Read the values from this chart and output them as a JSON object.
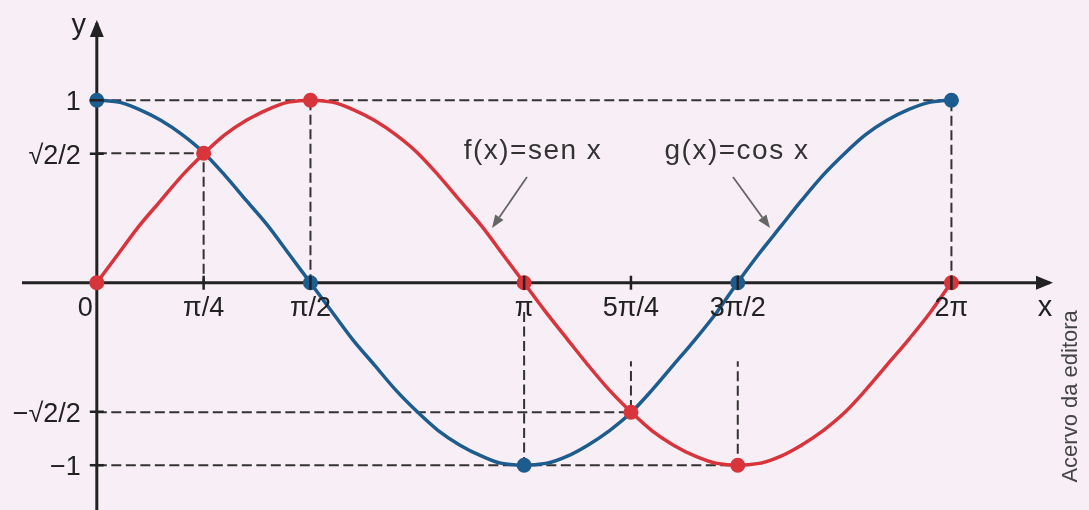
{
  "chart_data": {
    "type": "line",
    "xlabel": "x",
    "ylabel": "y",
    "annotations": [
      "Acervo da editora"
    ],
    "x": [
      0,
      0.16,
      0.31,
      0.47,
      0.63,
      0.79,
      0.94,
      1.1,
      1.26,
      1.41,
      1.57,
      1.73,
      1.88,
      2.04,
      2.2,
      2.36,
      2.51,
      2.67,
      2.83,
      2.98,
      3.14,
      3.3,
      3.46,
      3.61,
      3.77,
      3.93,
      4.08,
      4.24,
      4.4,
      4.56,
      4.71,
      4.87,
      5.03,
      5.18,
      5.34,
      5.5,
      5.65,
      5.81,
      5.97,
      6.13,
      6.28
    ],
    "series": [
      {
        "color": "#333333",
        "line_style": "dashed",
        "x": [
          0,
          0.7854,
          0.7854,
          null,
          0,
          6.2832,
          6.2832,
          null,
          1.5708,
          1.5708,
          null,
          3.1416,
          3.1416,
          null,
          0,
          4.7124,
          4.7124,
          null,
          0,
          3.927,
          3.927
        ],
        "values": [
          0.71,
          0.71,
          0,
          null,
          1,
          1,
          0,
          null,
          1,
          0,
          null,
          -0.16,
          -1,
          null,
          -1,
          -1,
          -0.43,
          null,
          -0.71,
          -0.71,
          -0.43
        ]
      },
      {
        "name": "f(x)=sen x",
        "color": "#d8343b",
        "values": [
          0,
          0.16,
          0.31,
          0.45,
          0.59,
          0.71,
          0.81,
          0.89,
          0.95,
          0.99,
          1,
          0.99,
          0.95,
          0.89,
          0.81,
          0.71,
          0.59,
          0.45,
          0.31,
          0.16,
          0,
          -0.16,
          -0.31,
          -0.45,
          -0.59,
          -0.71,
          -0.81,
          -0.89,
          -0.95,
          -0.99,
          -1,
          -0.99,
          -0.95,
          -0.89,
          -0.81,
          -0.71,
          -0.59,
          -0.45,
          -0.31,
          -0.16,
          0
        ]
      },
      {
        "name": "g(x)=cos x",
        "color": "#1d5c8e",
        "values": [
          1,
          0.99,
          0.95,
          0.89,
          0.81,
          0.71,
          0.59,
          0.45,
          0.31,
          0.16,
          0,
          -0.16,
          -0.31,
          -0.45,
          -0.59,
          -0.71,
          -0.81,
          -0.89,
          -0.95,
          -0.99,
          -1,
          -0.99,
          -0.95,
          -0.89,
          -0.81,
          -0.71,
          -0.59,
          -0.45,
          -0.31,
          -0.16,
          0,
          0.16,
          0.31,
          0.45,
          0.59,
          0.71,
          0.81,
          0.89,
          0.95,
          0.99,
          1
        ]
      },
      {
        "type": "scatter",
        "color": "#1d5c8e",
        "marker": "circle",
        "x": [
          0,
          1.5708,
          3.1416,
          4.7124,
          6.2832
        ],
        "values": [
          1,
          0,
          -1,
          0,
          1
        ]
      },
      {
        "type": "scatter",
        "color": "#d8343b",
        "marker": "circle",
        "x": [
          0,
          0.7854,
          1.5708,
          3.1416,
          3.927,
          4.7124,
          6.2832
        ],
        "values": [
          0,
          0.71,
          1,
          0,
          -0.71,
          -1,
          0
        ]
      }
    ],
    "xlim": [
      -0.55,
      7.03
    ],
    "ylim": [
      -1.24,
      1.44
    ],
    "xticks": [
      {
        "value": 0,
        "label": "0"
      },
      {
        "value": 0.7854,
        "label": "π/4"
      },
      {
        "value": 1.5708,
        "label": "π/2"
      },
      {
        "value": 3.1416,
        "label": "π"
      },
      {
        "value": 3.927,
        "label": "5π/4"
      },
      {
        "value": 4.7124,
        "label": "3π/2"
      },
      {
        "value": 6.2832,
        "label": "2π"
      }
    ],
    "yticks": [
      1,
      {
        "value": 0.7071,
        "label": "√2/2"
      },
      {
        "value": -0.7071,
        "label": "−√2/2"
      },
      {
        "value": -1,
        "label": "−1"
      }
    ]
  }
}
